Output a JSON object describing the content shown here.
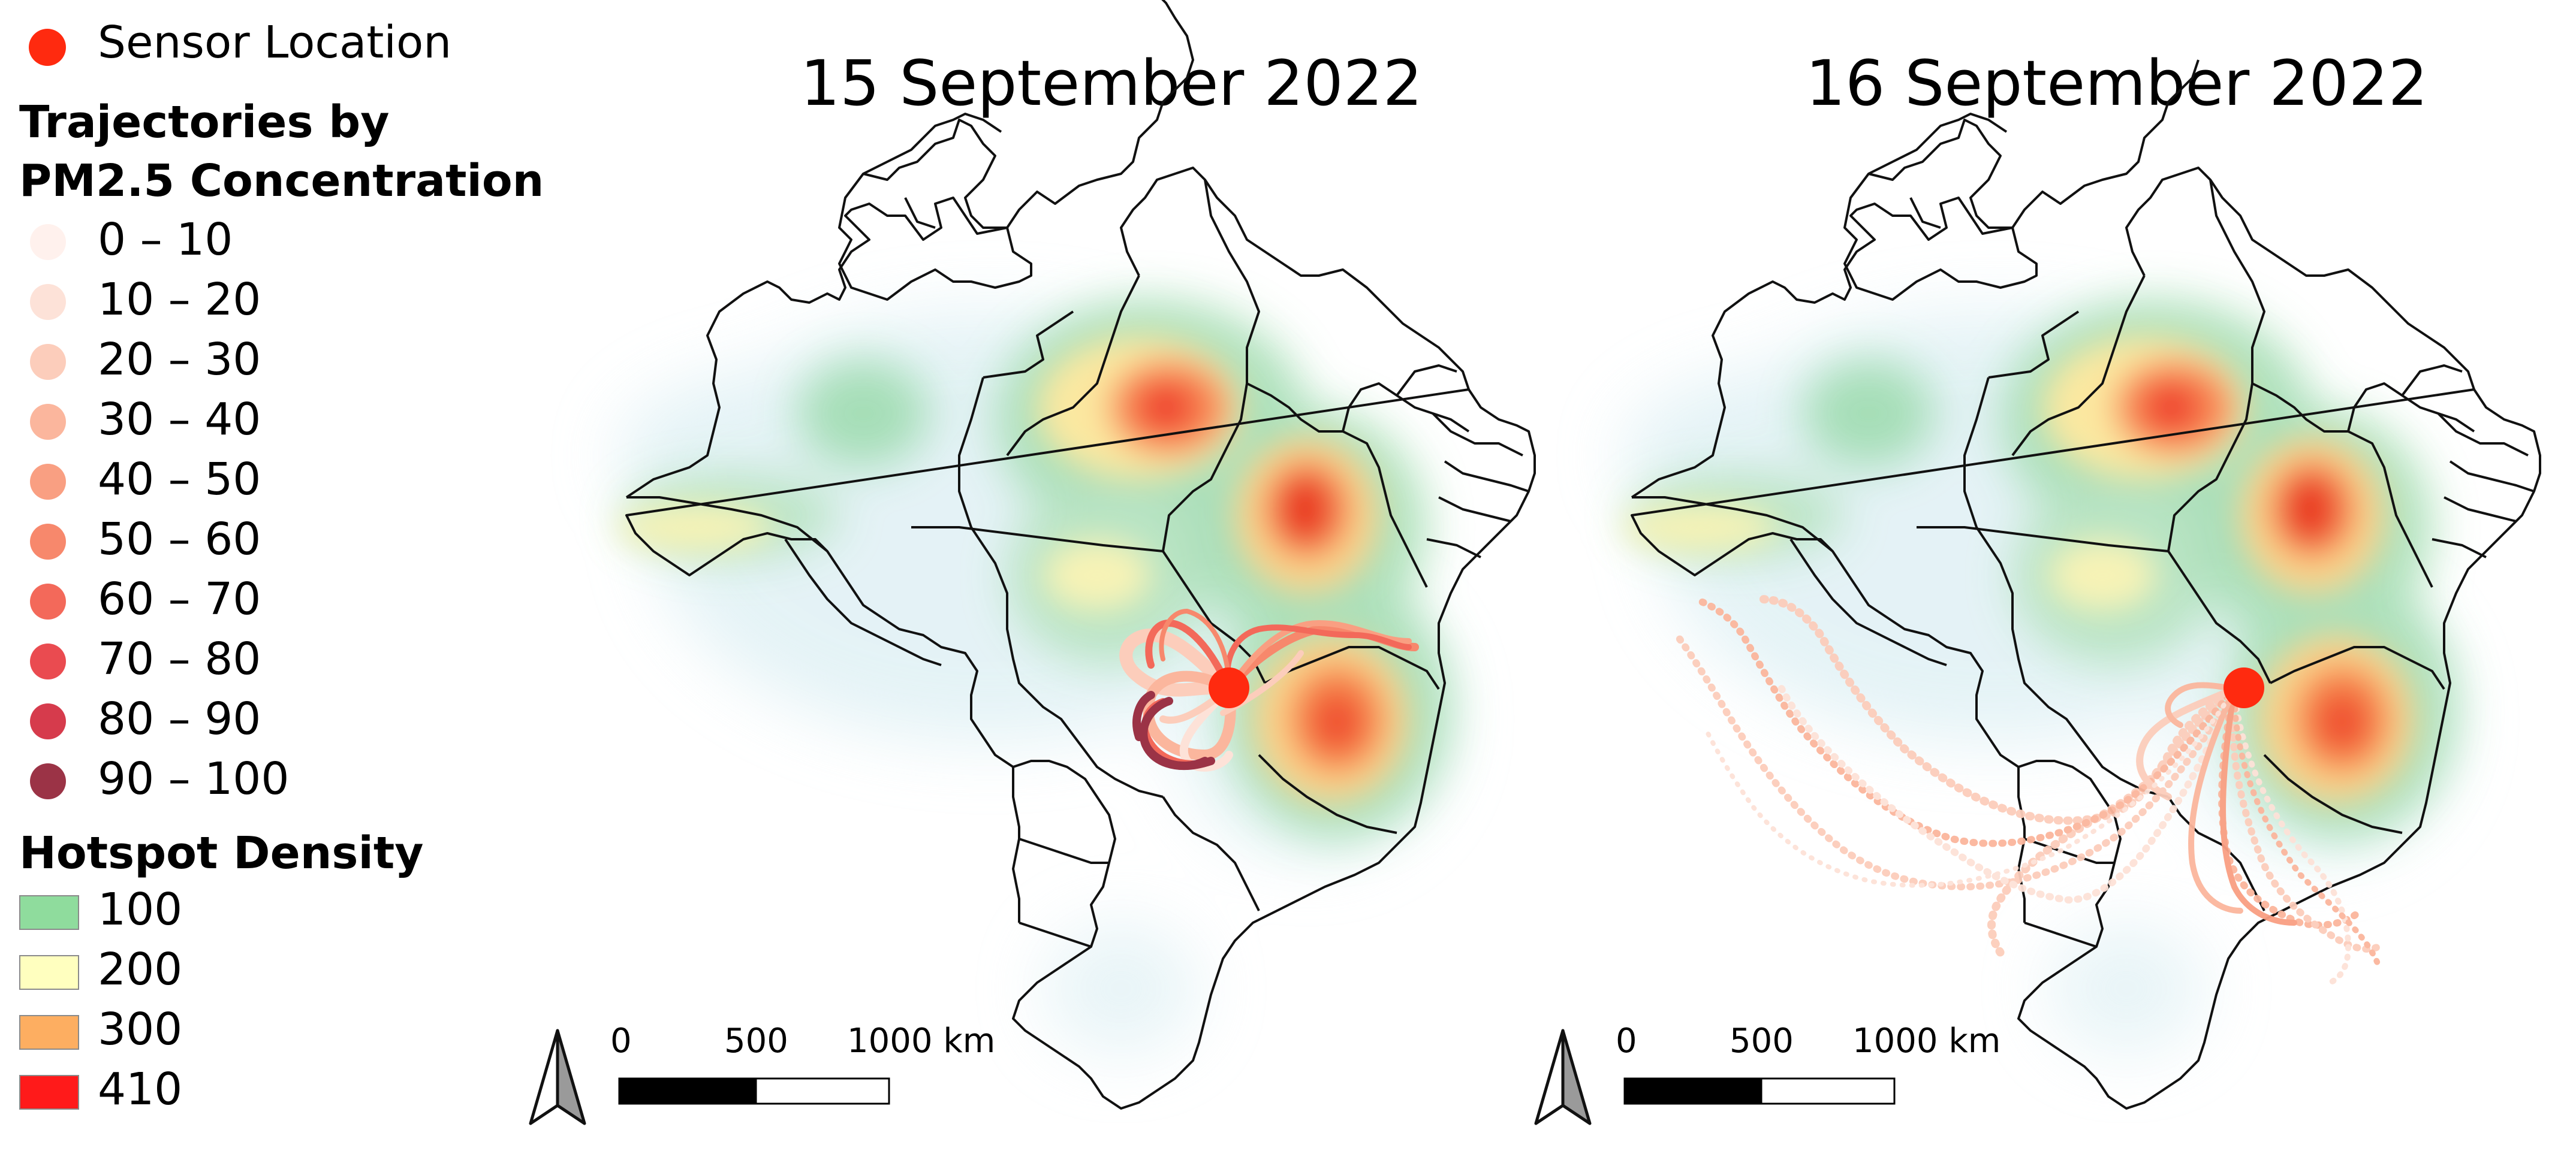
{
  "legend": {
    "sensor_label": "Sensor Location",
    "sensor_color": "#ff2a0f",
    "trajectories_heading_line1": "Trajectories by",
    "trajectories_heading_line2": "PM2.5 Concentration",
    "trajectory_classes": [
      {
        "label": "0 – 10",
        "color": "#fff1ed"
      },
      {
        "label": "10 – 20",
        "color": "#fde2d8"
      },
      {
        "label": "20 – 30",
        "color": "#fccdbb"
      },
      {
        "label": "30 – 40",
        "color": "#fbb69d"
      },
      {
        "label": "40 – 50",
        "color": "#f99f82"
      },
      {
        "label": "50 – 60",
        "color": "#f7886c"
      },
      {
        "label": "60 – 70",
        "color": "#f3695a"
      },
      {
        "label": "70 – 80",
        "color": "#ea4b50"
      },
      {
        "label": "80 – 90",
        "color": "#d63b4c"
      },
      {
        "label": "90 – 100",
        "color": "#9b3346"
      }
    ],
    "hotspot_heading": "Hotspot Density",
    "hotspot_classes": [
      {
        "label": "100",
        "color": "#8fdc9d"
      },
      {
        "label": "200",
        "color": "#ffffbf"
      },
      {
        "label": "300",
        "color": "#fdae61"
      },
      {
        "label": "410",
        "color": "#ff1a1a"
      }
    ]
  },
  "maps": [
    {
      "title": "15 September 2022",
      "scale_labels": [
        "0",
        "500",
        "1000 km"
      ]
    },
    {
      "title": "16 September 2022",
      "scale_labels": [
        "0",
        "500",
        "1000 km"
      ]
    }
  ]
}
